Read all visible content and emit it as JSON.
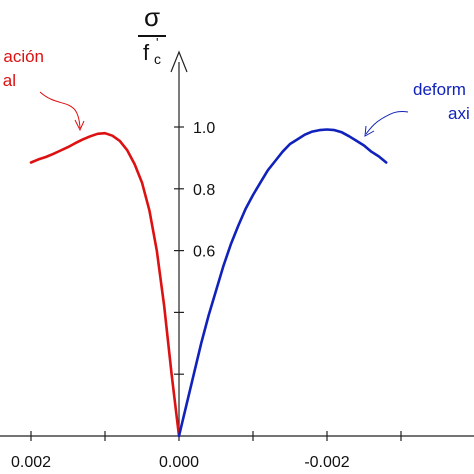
{
  "chart_data": {
    "type": "line",
    "title": "",
    "ylabel_numerator": "σ",
    "ylabel_denominator": "f",
    "ylabel_sub": "c",
    "ylabel_sup": "'",
    "xlabel": "",
    "x_ticks": [
      {
        "value": 0.002,
        "label": "0.002"
      },
      {
        "value": 0.001,
        "label": ""
      },
      {
        "value": 0.0,
        "label": "0.000"
      },
      {
        "value": -0.001,
        "label": ""
      },
      {
        "value": -0.002,
        "label": "-0.002"
      },
      {
        "value": -0.003,
        "label": ""
      }
    ],
    "y_ticks": [
      {
        "value": 0.2,
        "label": ""
      },
      {
        "value": 0.4,
        "label": ""
      },
      {
        "value": 0.6,
        "label": "0.6"
      },
      {
        "value": 0.8,
        "label": "0.8"
      },
      {
        "value": 1.0,
        "label": "1.0"
      }
    ],
    "xlim": [
      0.00235,
      -0.0031
    ],
    "ylim": [
      0,
      1.25
    ],
    "grid": false,
    "series": [
      {
        "name": "ación\nal",
        "color": "#dd1111",
        "x": [
          0.0,
          0.0001,
          0.0002,
          0.0003,
          0.0004,
          0.0005,
          0.0006,
          0.0007,
          0.0008,
          0.0009,
          0.001,
          0.0011,
          0.0012,
          0.0013,
          0.0014,
          0.0015,
          0.0016,
          0.0017,
          0.0018,
          0.0019,
          0.002
        ],
        "y": [
          0.0,
          0.2,
          0.42,
          0.6,
          0.73,
          0.82,
          0.88,
          0.925,
          0.955,
          0.972,
          0.98,
          0.978,
          0.97,
          0.96,
          0.948,
          0.935,
          0.924,
          0.913,
          0.903,
          0.895,
          0.885
        ]
      },
      {
        "name": "deform\naxi",
        "color": "#1122bb",
        "x": [
          0.0,
          -0.0001,
          -0.0002,
          -0.0003,
          -0.0004,
          -0.0005,
          -0.0006,
          -0.0007,
          -0.0008,
          -0.0009,
          -0.001,
          -0.0011,
          -0.0012,
          -0.0013,
          -0.0014,
          -0.0015,
          -0.0016,
          -0.0017,
          -0.0018,
          -0.0019,
          -0.002,
          -0.0021,
          -0.0022,
          -0.0023,
          -0.0024,
          -0.0025,
          -0.0026,
          -0.0027,
          -0.0028
        ],
        "y": [
          0.0,
          0.1,
          0.2,
          0.3,
          0.39,
          0.47,
          0.55,
          0.62,
          0.68,
          0.735,
          0.78,
          0.82,
          0.86,
          0.89,
          0.92,
          0.945,
          0.96,
          0.975,
          0.985,
          0.99,
          0.992,
          0.99,
          0.983,
          0.97,
          0.955,
          0.94,
          0.92,
          0.905,
          0.885
        ]
      }
    ]
  }
}
